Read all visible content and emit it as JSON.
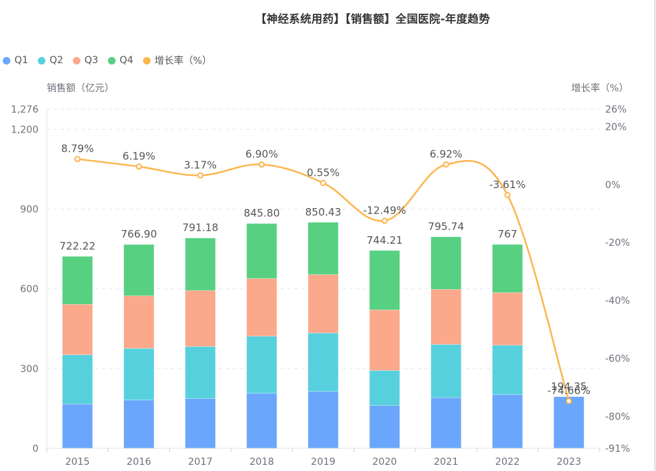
{
  "chart_data": {
    "type": "bar",
    "title": "【神经系统用药】【销售额】全国医院-年度趋势",
    "categories": [
      "2015",
      "2016",
      "2017",
      "2018",
      "2019",
      "2020",
      "2021",
      "2022",
      "2023"
    ],
    "series": [
      {
        "name": "Q1",
        "color": "#6aa6fb",
        "values": [
          167,
          182,
          187,
          207,
          214,
          161,
          191,
          202,
          194.35
        ]
      },
      {
        "name": "Q2",
        "color": "#57d0dd",
        "values": [
          185,
          194,
          196,
          215,
          220,
          132,
          200,
          186,
          0
        ]
      },
      {
        "name": "Q3",
        "color": "#fba88b",
        "values": [
          190,
          198,
          211,
          217,
          220,
          228,
          207,
          198,
          0
        ]
      },
      {
        "name": "Q4",
        "color": "#57d081",
        "values": [
          180.22,
          192.9,
          197.18,
          206.8,
          196.43,
          223.21,
          197.74,
          181,
          0
        ]
      }
    ],
    "totals": [
      722.22,
      766.9,
      791.18,
      845.8,
      850.43,
      744.21,
      795.74,
      767,
      194.35
    ],
    "total_labels": [
      "722.22",
      "766.90",
      "791.18",
      "845.80",
      "850.43",
      "744.21",
      "795.74",
      "767",
      "194.35"
    ],
    "line_series": {
      "name": "增长率（%）",
      "color": "#fbb650",
      "values": [
        8.79,
        6.19,
        3.17,
        6.9,
        0.55,
        -12.49,
        6.92,
        -3.61,
        -74.66
      ],
      "labels": [
        "8.79%",
        "6.19%",
        "3.17%",
        "6.90%",
        "0.55%",
        "-12.49%",
        "6.92%",
        "-3.61%",
        "-74.66%"
      ]
    },
    "ylabel": "销售额（亿元）",
    "ylabel_right": "增长率（%）",
    "ylim": [
      0,
      1276
    ],
    "yticks": [
      0,
      300,
      600,
      900,
      1200,
      1276
    ],
    "ytick_labels": [
      "0",
      "300",
      "600",
      "900",
      "1,200",
      "1,276"
    ],
    "ylim_right": [
      -91,
      26
    ],
    "yticks_right": [
      -91,
      -80,
      -60,
      -40,
      -20,
      0,
      20,
      26
    ],
    "ytick_labels_right": [
      "-91%",
      "-80%",
      "-60%",
      "-40%",
      "-20%",
      "0%",
      "20%",
      "26%"
    ],
    "grid": true,
    "legend": "top-left"
  },
  "legend": {
    "items": [
      {
        "label": "Q1",
        "color": "#6aa6fb"
      },
      {
        "label": "Q2",
        "color": "#57d0dd"
      },
      {
        "label": "Q3",
        "color": "#fba88b"
      },
      {
        "label": "Q4",
        "color": "#57d081"
      },
      {
        "label": "增长率（%）",
        "color": "#fbb650"
      }
    ]
  }
}
